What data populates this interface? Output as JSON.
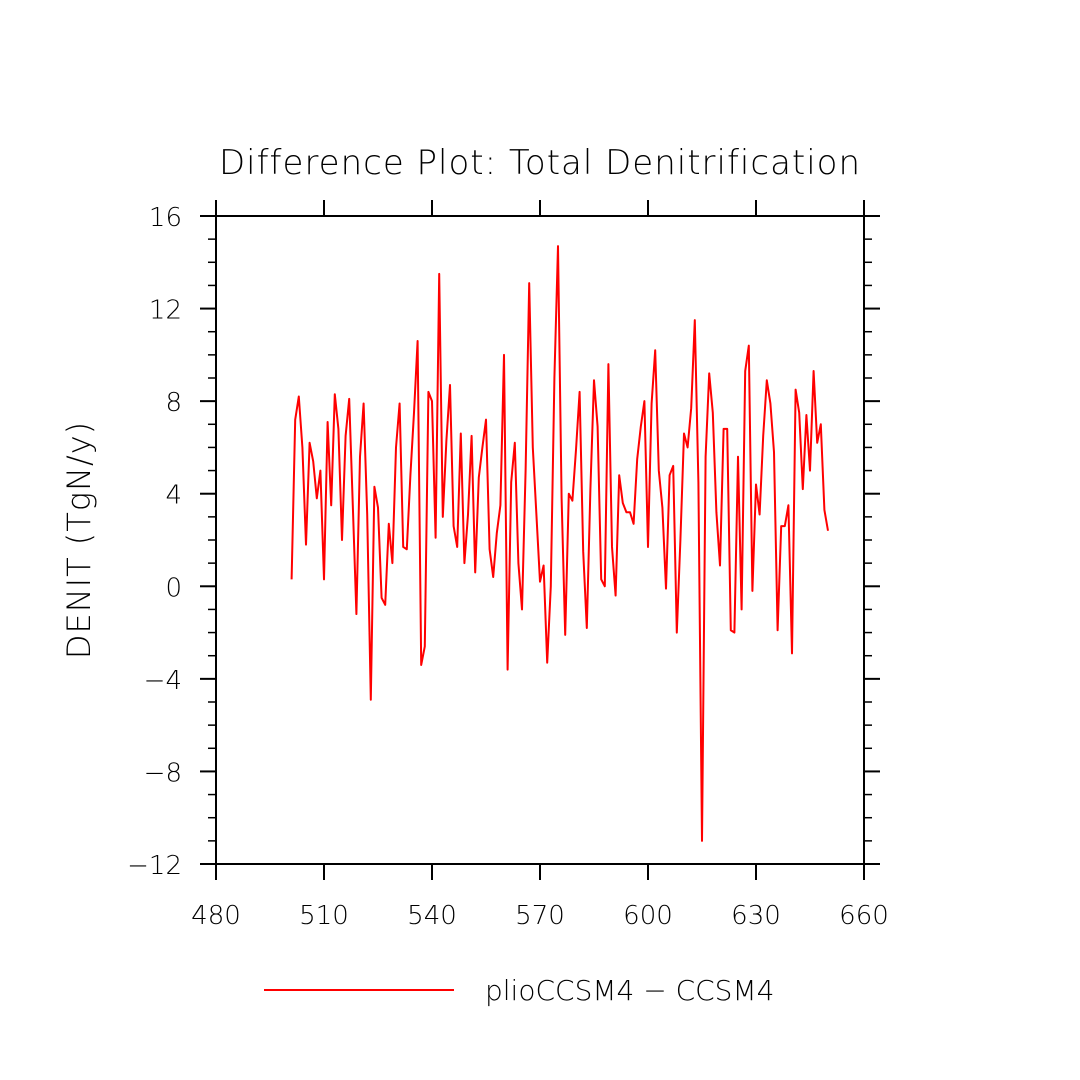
{
  "chart_data": {
    "type": "line",
    "title": "Difference Plot: Total Denitrification",
    "ylabel": "DENIT  (TgN/y)",
    "xlabel": "",
    "xlim": [
      480,
      660
    ],
    "ylim": [
      -12,
      16
    ],
    "xticks": [
      480,
      510,
      540,
      570,
      600,
      630,
      660
    ],
    "yticks": [
      -12,
      -8,
      -4,
      0,
      4,
      8,
      12,
      16
    ],
    "xtick_labels": [
      "480",
      "510",
      "540",
      "570",
      "600",
      "630",
      "660"
    ],
    "ytick_labels": [
      "−12",
      "−8",
      "−4",
      "0",
      "4",
      "8",
      "12",
      "16"
    ],
    "grid": false,
    "legend_position": "bottom",
    "series": [
      {
        "name": "plioCCSM4 − CCSM4",
        "color": "#ff0000",
        "x_start": 501,
        "x_step": 1,
        "values": [
          0.3,
          7.2,
          8.2,
          6.0,
          1.8,
          6.2,
          5.4,
          3.8,
          5.0,
          0.3,
          7.1,
          3.5,
          8.3,
          6.8,
          2.0,
          6.5,
          8.1,
          3.5,
          -1.2,
          5.6,
          7.9,
          3.1,
          -4.9,
          4.3,
          3.4,
          -0.5,
          -0.8,
          2.7,
          1.0,
          6.0,
          7.9,
          1.7,
          1.6,
          4.8,
          7.5,
          10.6,
          -3.4,
          -2.6,
          8.4,
          8.0,
          2.1,
          13.5,
          3.0,
          6.3,
          8.7,
          2.6,
          1.7,
          6.6,
          1.0,
          3.1,
          6.5,
          0.6,
          4.7,
          6.0,
          7.2,
          1.6,
          0.4,
          2.3,
          3.5,
          10.0,
          -3.6,
          4.5,
          6.2,
          1.0,
          -1.0,
          5.0,
          13.1,
          6.0,
          3.1,
          0.2,
          0.9,
          -3.3,
          0.0,
          9.0,
          14.7,
          3.8,
          -2.1,
          4.0,
          3.7,
          5.9,
          8.4,
          1.5,
          -1.8,
          4.2,
          8.9,
          6.9,
          0.3,
          0.0,
          9.6,
          1.7,
          -0.4,
          4.8,
          3.6,
          3.2,
          3.2,
          2.7,
          5.5,
          6.9,
          8.0,
          1.7,
          7.9,
          10.2,
          5.0,
          3.4,
          -0.1,
          4.8,
          5.2,
          -2.0,
          2.0,
          6.6,
          6.0,
          7.7,
          11.5,
          4.5,
          -11.0,
          5.6,
          9.2,
          7.5,
          3.2,
          0.9,
          6.8,
          6.8,
          -1.9,
          -2.0,
          5.6,
          -1.0,
          9.3,
          10.4,
          -0.2,
          4.4,
          3.1,
          6.5,
          8.9,
          7.9,
          5.8,
          -1.9,
          2.6,
          2.6,
          3.5,
          -2.9,
          8.5,
          7.5,
          4.2,
          7.4,
          5.0,
          9.3,
          6.2,
          7.0,
          3.3,
          2.4
        ]
      }
    ]
  }
}
